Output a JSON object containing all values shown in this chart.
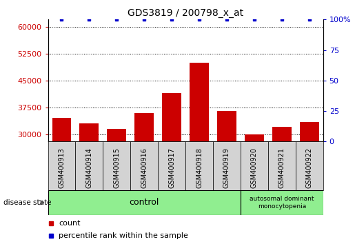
{
  "title": "GDS3819 / 200798_x_at",
  "samples": [
    "GSM400913",
    "GSM400914",
    "GSM400915",
    "GSM400916",
    "GSM400917",
    "GSM400918",
    "GSM400919",
    "GSM400920",
    "GSM400921",
    "GSM400922"
  ],
  "counts": [
    34500,
    33000,
    31500,
    36000,
    41500,
    50000,
    36500,
    30000,
    32000,
    33500
  ],
  "percentile_ranks": [
    100,
    100,
    100,
    100,
    100,
    100,
    100,
    100,
    100,
    100
  ],
  "bar_color": "#cc0000",
  "dot_color": "#0000cc",
  "ylim_left": [
    28000,
    62000
  ],
  "ylim_right": [
    0,
    100
  ],
  "yticks_left": [
    30000,
    37500,
    45000,
    52500,
    60000
  ],
  "yticks_right": [
    0,
    25,
    50,
    75,
    100
  ],
  "control_count": 7,
  "mono_count": 3,
  "tick_label_color_left": "#cc0000",
  "tick_label_color_right": "#0000cc",
  "grid_color": "#000000",
  "bar_width": 0.7,
  "cell_bg_color": "#d3d3d3",
  "control_color": "#90ee90",
  "mono_color": "#90ee90"
}
